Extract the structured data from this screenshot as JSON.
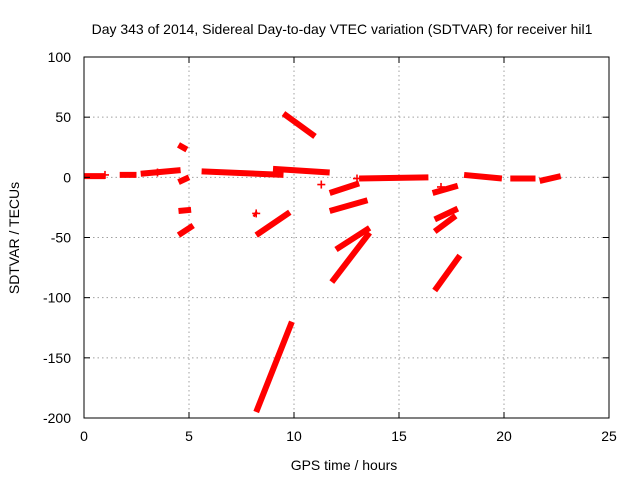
{
  "chart_data": {
    "type": "scatter",
    "title": "Day 343 of 2014, Sidereal Day-to-day VTEC variation (SDTVAR) for receiver hil1",
    "xlabel": "GPS time / hours",
    "ylabel": "SDTVAR / TECUs",
    "xlim": [
      0,
      25
    ],
    "ylim": [
      -200,
      100
    ],
    "xticks": [
      "0",
      "5",
      "10",
      "15",
      "20",
      "25"
    ],
    "yticks": [
      "100",
      "50",
      "0",
      "-50",
      "-100",
      "-150",
      "-200"
    ],
    "grid": true,
    "legend": "none",
    "marker": "+",
    "color": "#ff0000",
    "segments": [
      {
        "x": [
          0.0,
          1.0
        ],
        "y": [
          1,
          1
        ]
      },
      {
        "x": [
          1.7,
          2.5
        ],
        "y": [
          2,
          2
        ]
      },
      {
        "x": [
          2.7,
          4.6
        ],
        "y": [
          3,
          6
        ]
      },
      {
        "x": [
          4.5,
          4.9
        ],
        "y": [
          27,
          23
        ]
      },
      {
        "x": [
          4.5,
          5.0
        ],
        "y": [
          -4,
          0
        ]
      },
      {
        "x": [
          4.5,
          5.1
        ],
        "y": [
          -28,
          -27
        ]
      },
      {
        "x": [
          4.5,
          5.2
        ],
        "y": [
          -48,
          -40
        ]
      },
      {
        "x": [
          5.6,
          9.5
        ],
        "y": [
          5,
          2
        ]
      },
      {
        "x": [
          8.1,
          8.2
        ],
        "y": [
          -30,
          -31
        ]
      },
      {
        "x": [
          8.2,
          9.8
        ],
        "y": [
          -48,
          -29
        ]
      },
      {
        "x": [
          8.2,
          9.9
        ],
        "y": [
          -195,
          -120
        ]
      },
      {
        "x": [
          9.5,
          11.0
        ],
        "y": [
          53,
          34
        ]
      },
      {
        "x": [
          9.0,
          11.7
        ],
        "y": [
          7,
          4
        ]
      },
      {
        "x": [
          11.7,
          13.1
        ],
        "y": [
          -13,
          -5
        ]
      },
      {
        "x": [
          11.7,
          13.5
        ],
        "y": [
          -28,
          -19
        ]
      },
      {
        "x": [
          12.0,
          13.6
        ],
        "y": [
          -60,
          -42
        ]
      },
      {
        "x": [
          11.8,
          13.6
        ],
        "y": [
          -87,
          -46
        ]
      },
      {
        "x": [
          13.1,
          16.4
        ],
        "y": [
          -1,
          0
        ]
      },
      {
        "x": [
          16.6,
          17.8
        ],
        "y": [
          -13,
          -7
        ]
      },
      {
        "x": [
          16.7,
          17.8
        ],
        "y": [
          -35,
          -26
        ]
      },
      {
        "x": [
          16.7,
          17.7
        ],
        "y": [
          -45,
          -32
        ]
      },
      {
        "x": [
          16.7,
          17.9
        ],
        "y": [
          -94,
          -65
        ]
      },
      {
        "x": [
          18.1,
          19.9
        ],
        "y": [
          2,
          -1
        ]
      },
      {
        "x": [
          20.3,
          21.5
        ],
        "y": [
          -1,
          -1
        ]
      },
      {
        "x": [
          21.7,
          22.7
        ],
        "y": [
          -3,
          1
        ]
      }
    ],
    "points": [
      {
        "x": 1.0,
        "y": 2
      },
      {
        "x": 3.5,
        "y": 4
      },
      {
        "x": 8.2,
        "y": -30
      },
      {
        "x": 11.3,
        "y": -6
      },
      {
        "x": 13.0,
        "y": -1
      },
      {
        "x": 17.0,
        "y": -8
      }
    ]
  }
}
